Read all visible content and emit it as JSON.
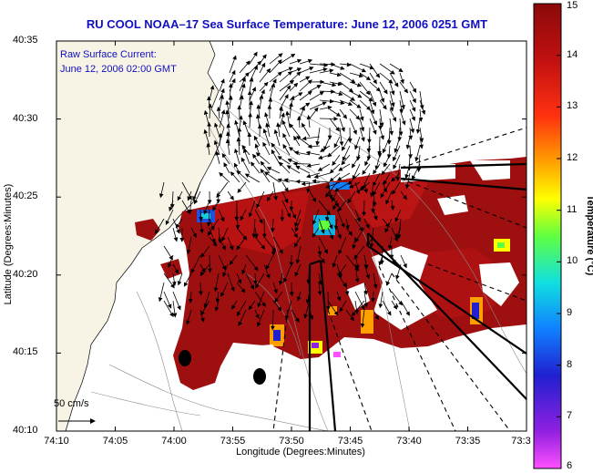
{
  "title": "RU COOL  NOAA–17  Sea Surface Temperature:  June 12, 2006 0251 GMT",
  "current_label_line1": "Raw Surface Current:",
  "current_label_line2": "June 12, 2006 02:00 GMT",
  "scale_label": "50 cm/s",
  "chart_data": {
    "type": "map",
    "xlabel": "Longitude (Degrees:Minutes)",
    "ylabel": "Latitude (Degrees:Minutes)",
    "xticks": [
      "74:10",
      "74:05",
      "74:00",
      "73:55",
      "73:50",
      "73:45",
      "73:40",
      "73:35",
      "73:3"
    ],
    "yticks": [
      "40:35",
      "40:30",
      "40:25",
      "40:20",
      "40:15",
      "40:10"
    ],
    "colorbar": {
      "label": "Temperature (°C)",
      "min": 6,
      "max": 15,
      "ticks": [
        "15",
        "14",
        "13",
        "12",
        "11",
        "10",
        "9",
        "8",
        "7",
        "6"
      ],
      "colormap": [
        "#ff50ff",
        "#9020e0",
        "#2020d0",
        "#1080ff",
        "#10e0e0",
        "#60ff40",
        "#ffff00",
        "#ffa000",
        "#ff3010",
        "#c01010",
        "#8b0a0a"
      ]
    },
    "grid": false
  }
}
